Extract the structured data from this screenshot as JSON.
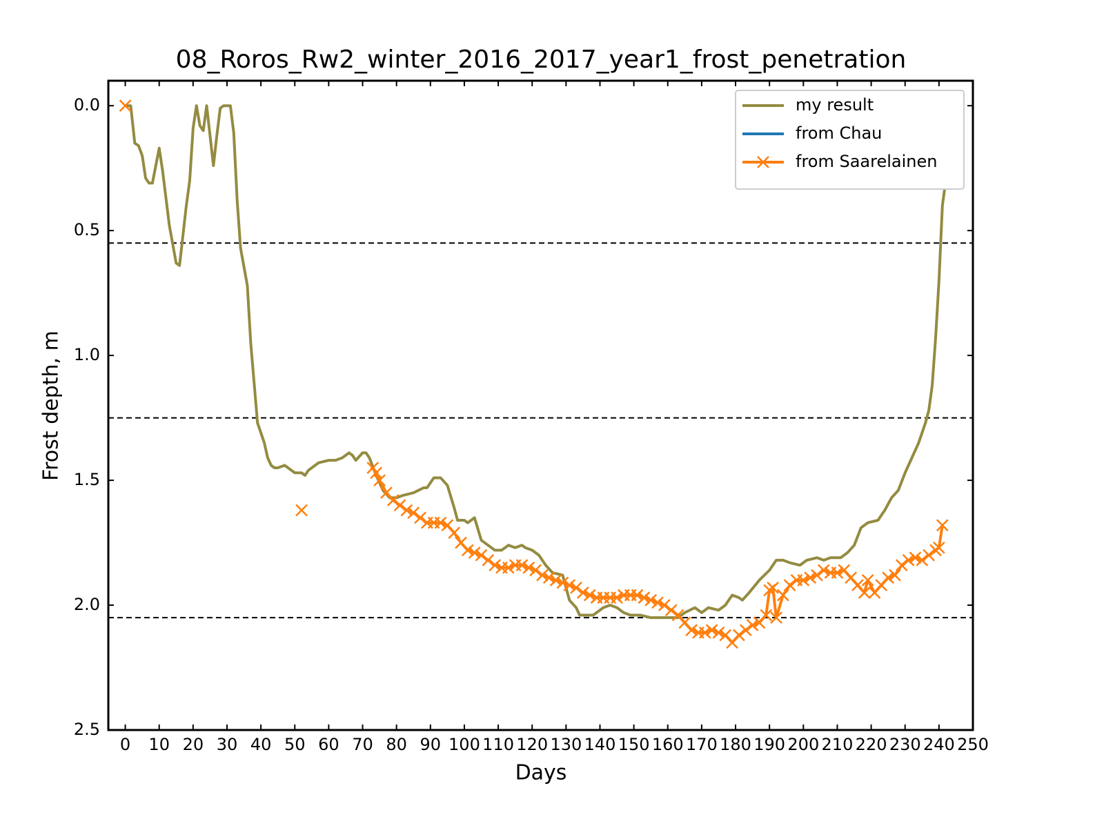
{
  "chart_data": {
    "type": "line",
    "title": "08_Roros_Rw2_winter_2016_2017_year1_frost_penetration",
    "x_label": "Days",
    "y_label": "Frost depth, m",
    "xlim": [
      -5,
      250
    ],
    "xticks": [
      0,
      10,
      20,
      30,
      40,
      50,
      60,
      70,
      80,
      90,
      100,
      110,
      120,
      130,
      140,
      150,
      160,
      170,
      180,
      190,
      200,
      210,
      220,
      230,
      240,
      250
    ],
    "ylim": [
      -0.1,
      2.5
    ],
    "y_inverted": true,
    "yticks": [
      {
        "value": 0,
        "label": "0.0"
      },
      0.5,
      {
        "value": 1,
        "label": "1.0"
      },
      1.5,
      {
        "value": 2,
        "label": "2.0"
      },
      2.5
    ],
    "hlines": [
      0.55,
      1.25,
      2.05
    ],
    "hline_color": "#000000",
    "legend": "upper right",
    "series": [
      {
        "name": "my result",
        "color": "#938b41",
        "marker": "none",
        "x": [
          0,
          1.6,
          2.8,
          3.9,
          5,
          6,
          7,
          8,
          10,
          11,
          13,
          15,
          16,
          18,
          19,
          20,
          21,
          22,
          23,
          24,
          26,
          27,
          28,
          29,
          31,
          32,
          33,
          34,
          36,
          37,
          39,
          41,
          42,
          43,
          44,
          45,
          47,
          50,
          52,
          53,
          54,
          56,
          57,
          60,
          62,
          64,
          66,
          67,
          68,
          70,
          71,
          72,
          74,
          76,
          78,
          80,
          82,
          85,
          88,
          89,
          91,
          93,
          95,
          97,
          98,
          100,
          101,
          103,
          105,
          107,
          109,
          111,
          113,
          115,
          117,
          118,
          120,
          122,
          124,
          126,
          129,
          131,
          133,
          134,
          138,
          141,
          143,
          145,
          147,
          149,
          152,
          155,
          159,
          163,
          165,
          168,
          170,
          172,
          175,
          177,
          179,
          181,
          182,
          184,
          187,
          190,
          192,
          194,
          196,
          199,
          201,
          204,
          206,
          208,
          211,
          213,
          215,
          217,
          219,
          222,
          224,
          226,
          228,
          230,
          232,
          234,
          236,
          237,
          238,
          239,
          240,
          241,
          242
        ],
        "values": [
          0.0,
          0.0,
          0.15,
          0.16,
          0.2,
          0.29,
          0.31,
          0.31,
          0.17,
          0.26,
          0.48,
          0.63,
          0.64,
          0.4,
          0.3,
          0.09,
          0.0,
          0.08,
          0.1,
          0.0,
          0.24,
          0.12,
          0.01,
          0.0,
          0.0,
          0.11,
          0.38,
          0.57,
          0.72,
          0.95,
          1.27,
          1.35,
          1.41,
          1.44,
          1.45,
          1.45,
          1.44,
          1.47,
          1.47,
          1.48,
          1.46,
          1.44,
          1.43,
          1.42,
          1.42,
          1.41,
          1.39,
          1.4,
          1.42,
          1.39,
          1.39,
          1.41,
          1.48,
          1.54,
          1.57,
          1.57,
          1.56,
          1.55,
          1.53,
          1.53,
          1.49,
          1.49,
          1.52,
          1.61,
          1.66,
          1.66,
          1.67,
          1.65,
          1.74,
          1.76,
          1.78,
          1.78,
          1.76,
          1.77,
          1.76,
          1.77,
          1.78,
          1.8,
          1.84,
          1.87,
          1.88,
          1.98,
          2.01,
          2.04,
          2.04,
          2.01,
          2.0,
          2.01,
          2.03,
          2.04,
          2.04,
          2.05,
          2.05,
          2.05,
          2.03,
          2.01,
          2.03,
          2.01,
          2.02,
          2.0,
          1.96,
          1.97,
          1.98,
          1.95,
          1.9,
          1.86,
          1.82,
          1.82,
          1.83,
          1.84,
          1.82,
          1.81,
          1.82,
          1.81,
          1.81,
          1.79,
          1.76,
          1.69,
          1.67,
          1.66,
          1.62,
          1.57,
          1.54,
          1.47,
          1.41,
          1.35,
          1.27,
          1.22,
          1.12,
          0.93,
          0.7,
          0.4,
          0.3
        ]
      },
      {
        "name": "from Chau",
        "color": "#1f77b4",
        "marker": "none",
        "x": [],
        "values": []
      },
      {
        "name": "from Saarelainen",
        "color": "#ff7f0e",
        "marker": "x",
        "x": [
          0,
          null,
          52,
          null,
          73,
          74,
          75,
          77,
          79,
          81,
          83,
          85,
          87,
          89,
          91,
          93,
          95,
          97,
          99,
          101,
          103,
          105,
          107,
          109,
          111,
          113,
          115,
          117,
          119,
          121,
          123,
          125,
          127,
          129,
          131,
          133,
          135,
          137,
          139,
          141,
          143,
          145,
          147,
          149,
          151,
          153,
          155,
          157,
          159,
          161,
          163,
          165,
          167,
          169,
          171,
          173,
          175,
          177,
          179,
          181,
          183,
          185,
          187,
          189,
          190,
          191,
          192,
          194,
          196,
          198,
          200,
          202,
          204,
          206,
          208,
          210,
          212,
          214,
          216,
          218,
          219,
          221,
          223,
          225,
          227,
          229,
          231,
          233,
          235,
          237,
          239,
          240,
          241
        ],
        "values": [
          0.0,
          null,
          1.62,
          null,
          1.45,
          1.47,
          1.5,
          1.55,
          1.58,
          1.6,
          1.62,
          1.63,
          1.65,
          1.67,
          1.67,
          1.67,
          1.68,
          1.71,
          1.75,
          1.78,
          1.79,
          1.8,
          1.82,
          1.84,
          1.85,
          1.85,
          1.84,
          1.84,
          1.85,
          1.86,
          1.88,
          1.89,
          1.9,
          1.91,
          1.92,
          1.93,
          1.95,
          1.96,
          1.97,
          1.97,
          1.97,
          1.97,
          1.96,
          1.96,
          1.96,
          1.97,
          1.98,
          1.99,
          2.0,
          2.02,
          2.04,
          2.07,
          2.1,
          2.11,
          2.11,
          2.1,
          2.11,
          2.12,
          2.15,
          2.12,
          2.1,
          2.08,
          2.07,
          2.04,
          1.94,
          1.93,
          2.05,
          1.96,
          1.92,
          1.9,
          1.9,
          1.89,
          1.88,
          1.86,
          1.87,
          1.87,
          1.86,
          1.89,
          1.92,
          1.95,
          1.9,
          1.95,
          1.92,
          1.89,
          1.88,
          1.84,
          1.82,
          1.81,
          1.82,
          1.8,
          1.78,
          1.77,
          1.68
        ]
      }
    ]
  }
}
